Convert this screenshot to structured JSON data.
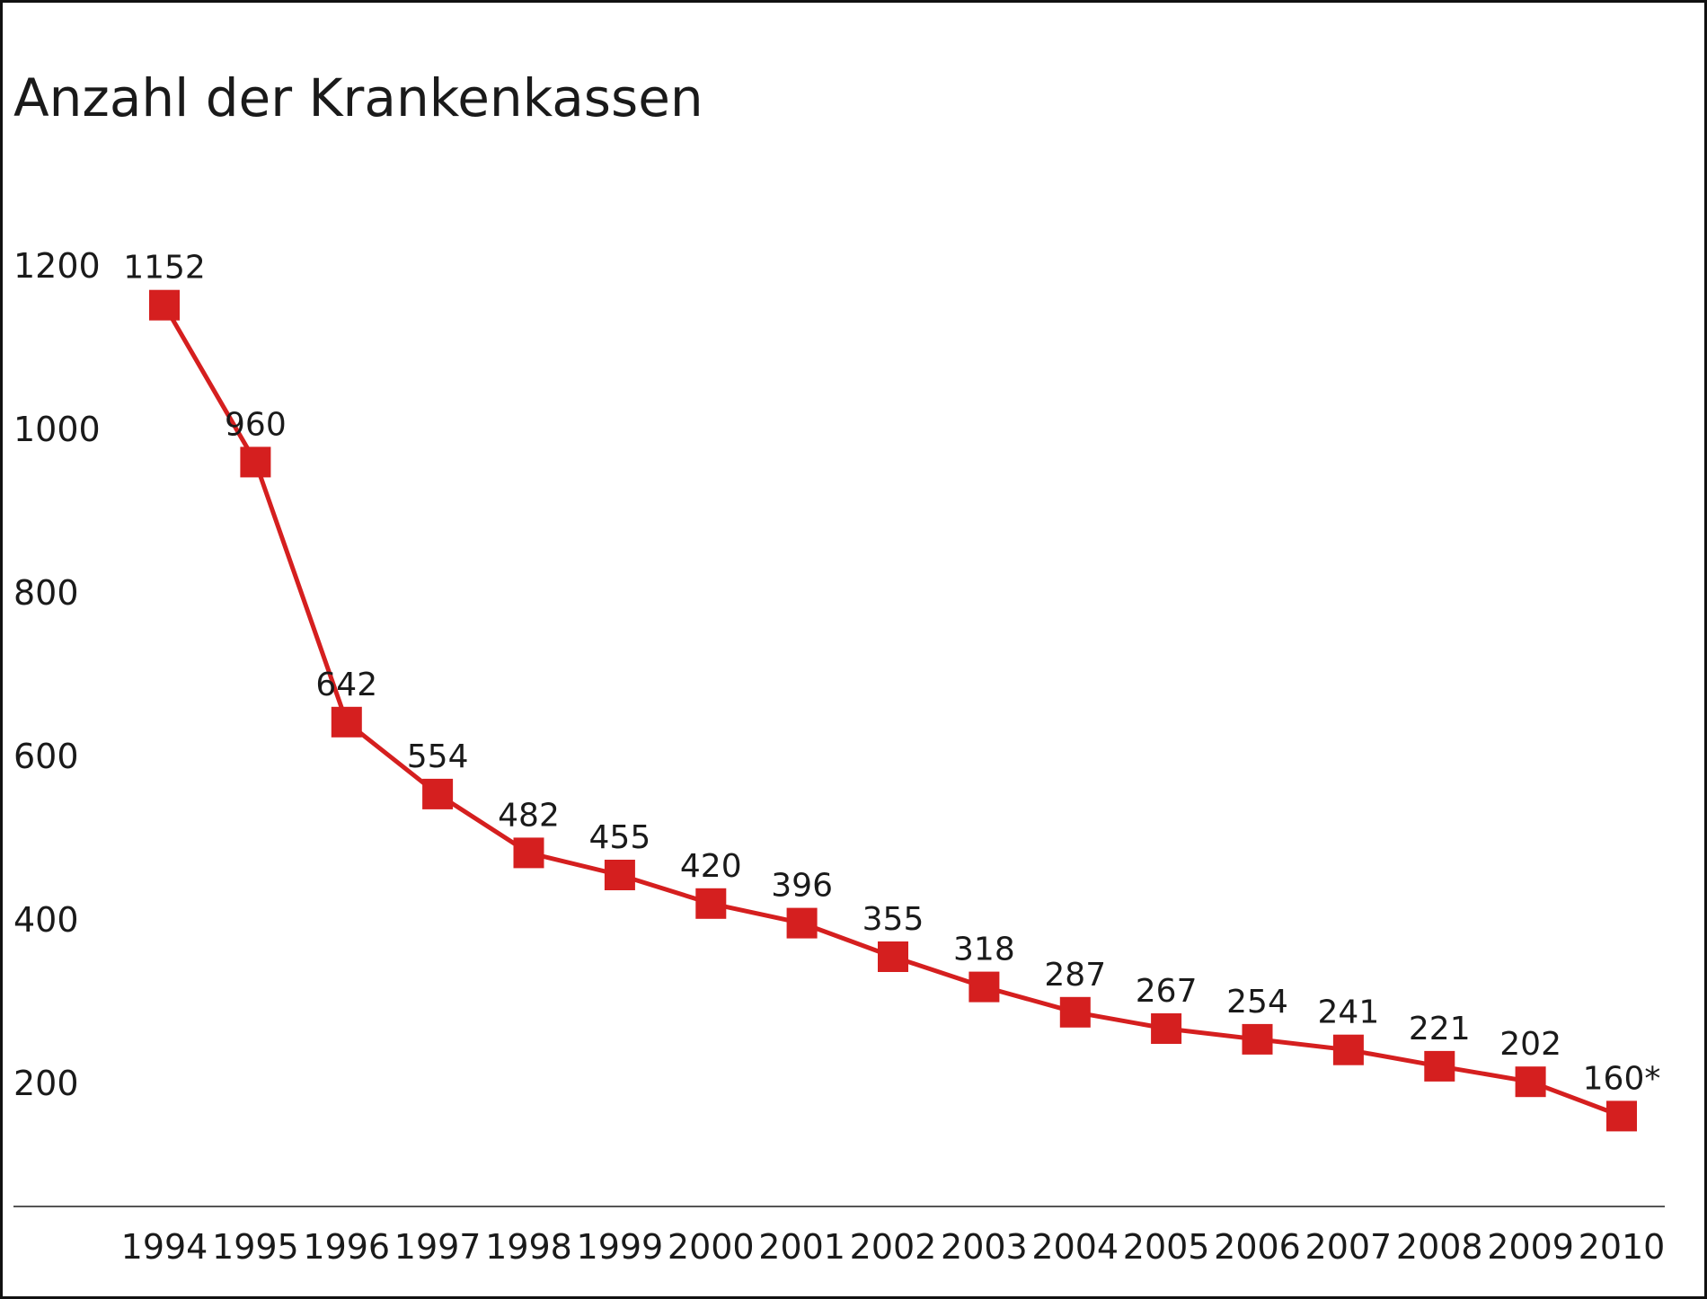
{
  "chart_data": {
    "type": "line",
    "title": "Anzahl der Krankenkassen",
    "xlabel": "",
    "ylabel": "",
    "categories": [
      "1994",
      "1995",
      "1996",
      "1997",
      "1998",
      "1999",
      "2000",
      "2001",
      "2002",
      "2003",
      "2004",
      "2005",
      "2006",
      "2007",
      "2008",
      "2009",
      "2010"
    ],
    "series": [
      {
        "values": [
          1152,
          960,
          642,
          554,
          482,
          455,
          420,
          396,
          355,
          318,
          287,
          267,
          254,
          241,
          221,
          202,
          160
        ],
        "labels": [
          "1152",
          "960",
          "642",
          "554",
          "482",
          "455",
          "420",
          "396",
          "355",
          "318",
          "287",
          "267",
          "254",
          "241",
          "221",
          "202",
          "160*"
        ],
        "color": "#d51f1f"
      }
    ],
    "yticks": [
      "1200",
      "1000",
      "800",
      "600",
      "400",
      "200"
    ],
    "ylim": [
      100,
      1250
    ],
    "grid": false,
    "legend": "none"
  }
}
